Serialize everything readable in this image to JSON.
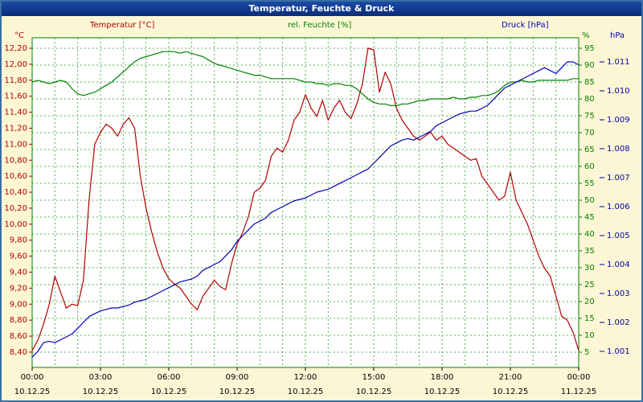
{
  "window": {
    "title": "Temperatur, Feuchte & Druck"
  },
  "colors": {
    "background": "#fdf6d5",
    "window_border": "#3a6ea5",
    "titlebar": "#123f8f",
    "titlebar_text": "#ffffff",
    "grid": "#55b055",
    "plot_border": "#008000",
    "temperature_series": "#b40000",
    "humidity_series": "#008000",
    "pressure_series": "#0000b0",
    "x_label_text": "#000000"
  },
  "chart_data": {
    "type": "line",
    "title": "Temperatur, Feuchte & Druck",
    "grid": "on",
    "legend_position": "top",
    "sample_interval_minutes": 15,
    "x_axis": {
      "hours_span": 24,
      "tick_times": [
        "00:00",
        "03:00",
        "06:00",
        "09:00",
        "12:00",
        "15:00",
        "18:00",
        "21:00",
        "00:00"
      ],
      "tick_dates": [
        "10.12.25",
        "10.12.25",
        "10.12.25",
        "10.12.25",
        "10.12.25",
        "10.12.25",
        "10.12.25",
        "10.12.25",
        "11.12.25"
      ]
    },
    "axes": {
      "temperature": {
        "title": "Temperatur [°C]",
        "unit": "°C",
        "color": "#b40000",
        "side": "left",
        "top_value": 12.2,
        "bottom_value": 8.4,
        "tick_step": 0.2,
        "tick_labels": [
          "12,20",
          "12,00",
          "11,80",
          "11,60",
          "11,40",
          "11,20",
          "11,00",
          "10,80",
          "10,60",
          "10,40",
          "10,20",
          "10,00",
          "9,80",
          "9,60",
          "9,40",
          "9,20",
          "9,00",
          "8,80",
          "8,60",
          "8,40"
        ]
      },
      "humidity": {
        "title": "rel. Feuchte [%]",
        "unit": "%",
        "color": "#008000",
        "side": "right",
        "top_value": 95,
        "bottom_value": 5,
        "tick_step": 5,
        "tick_labels": [
          "95",
          "90",
          "85",
          "80",
          "75",
          "70",
          "65",
          "60",
          "55",
          "50",
          "45",
          "40",
          "35",
          "30",
          "25",
          "20",
          "15",
          "10",
          "5"
        ]
      },
      "pressure": {
        "title": "Druck [hPa]",
        "unit": "hPa",
        "color": "#0000b0",
        "side": "far-right",
        "top_value": 1011,
        "bottom_value": 1001,
        "tick_step": 1,
        "tick_labels": [
          "1.011",
          "1.010",
          "1.009",
          "1.008",
          "1.007",
          "1.006",
          "1.005",
          "1.004",
          "1.003",
          "1.002",
          "1.001"
        ]
      }
    },
    "series": [
      {
        "name": "Temperatur",
        "axis": "temperature",
        "color": "#b40000",
        "values": [
          8.42,
          8.55,
          8.75,
          9.0,
          9.35,
          9.15,
          8.95,
          9.0,
          8.98,
          9.3,
          10.3,
          11.0,
          11.15,
          11.25,
          11.2,
          11.1,
          11.25,
          11.33,
          11.2,
          10.6,
          10.2,
          9.9,
          9.65,
          9.45,
          9.32,
          9.25,
          9.2,
          9.1,
          9.0,
          8.93,
          9.1,
          9.2,
          9.3,
          9.22,
          9.18,
          9.5,
          9.75,
          9.9,
          10.1,
          10.4,
          10.45,
          10.55,
          10.85,
          10.95,
          10.9,
          11.05,
          11.3,
          11.4,
          11.62,
          11.45,
          11.35,
          11.55,
          11.3,
          11.45,
          11.55,
          11.4,
          11.32,
          11.5,
          11.75,
          12.2,
          12.18,
          11.65,
          11.9,
          11.75,
          11.45,
          11.3,
          11.2,
          11.1,
          11.05,
          11.1,
          11.15,
          11.05,
          11.1,
          11.0,
          10.95,
          10.9,
          10.85,
          10.8,
          10.82,
          10.6,
          10.5,
          10.4,
          10.3,
          10.35,
          10.65,
          10.3,
          10.15,
          10.0,
          9.8,
          9.6,
          9.45,
          9.35,
          9.1,
          8.85,
          8.8,
          8.65,
          8.42
        ]
      },
      {
        "name": "rel. Feuchte",
        "axis": "humidity",
        "color": "#008000",
        "values": [
          85,
          85.5,
          85,
          84.5,
          85,
          85.5,
          85,
          83,
          81.5,
          81,
          81.5,
          82,
          83,
          84,
          85,
          86.5,
          88,
          89.5,
          91,
          92,
          92.5,
          93,
          93.5,
          94,
          94,
          94,
          93.5,
          94,
          93.5,
          93,
          92.5,
          91.5,
          90.5,
          90,
          89.5,
          89,
          88.5,
          88,
          87.5,
          87,
          87,
          86.5,
          86,
          86,
          86,
          86,
          86,
          85.5,
          85,
          85,
          84.5,
          84.5,
          84,
          84.5,
          84.5,
          84,
          84,
          83,
          81.5,
          80,
          79,
          78.5,
          78.5,
          78,
          78,
          78.5,
          78.5,
          79,
          79.5,
          79.5,
          80,
          80,
          80,
          80,
          80.5,
          80,
          80,
          80.5,
          80.5,
          81,
          81,
          81.5,
          82.5,
          84,
          85,
          85,
          85.5,
          85,
          85,
          85.5,
          85.5,
          85.5,
          85.5,
          85.5,
          85.5,
          86,
          86
        ]
      },
      {
        "name": "Druck",
        "axis": "pressure",
        "color": "#0000b0",
        "values": [
          1000.8,
          1001.0,
          1001.3,
          1001.35,
          1001.3,
          1001.4,
          1001.5,
          1001.6,
          1001.8,
          1002.0,
          1002.2,
          1002.3,
          1002.4,
          1002.45,
          1002.5,
          1002.5,
          1002.55,
          1002.6,
          1002.7,
          1002.75,
          1002.8,
          1002.9,
          1003.0,
          1003.1,
          1003.2,
          1003.3,
          1003.4,
          1003.45,
          1003.5,
          1003.6,
          1003.8,
          1003.9,
          1004.0,
          1004.1,
          1004.3,
          1004.5,
          1004.8,
          1005.0,
          1005.2,
          1005.4,
          1005.5,
          1005.6,
          1005.8,
          1005.9,
          1006.0,
          1006.1,
          1006.2,
          1006.25,
          1006.3,
          1006.4,
          1006.5,
          1006.55,
          1006.6,
          1006.7,
          1006.8,
          1006.9,
          1007.0,
          1007.1,
          1007.2,
          1007.3,
          1007.5,
          1007.7,
          1007.9,
          1008.1,
          1008.2,
          1008.3,
          1008.35,
          1008.3,
          1008.4,
          1008.5,
          1008.6,
          1008.8,
          1008.9,
          1009.0,
          1009.1,
          1009.2,
          1009.25,
          1009.3,
          1009.3,
          1009.4,
          1009.5,
          1009.7,
          1009.9,
          1010.1,
          1010.2,
          1010.3,
          1010.4,
          1010.5,
          1010.6,
          1010.7,
          1010.8,
          1010.7,
          1010.6,
          1010.8,
          1011.0,
          1011.0,
          1010.9
        ]
      }
    ]
  }
}
